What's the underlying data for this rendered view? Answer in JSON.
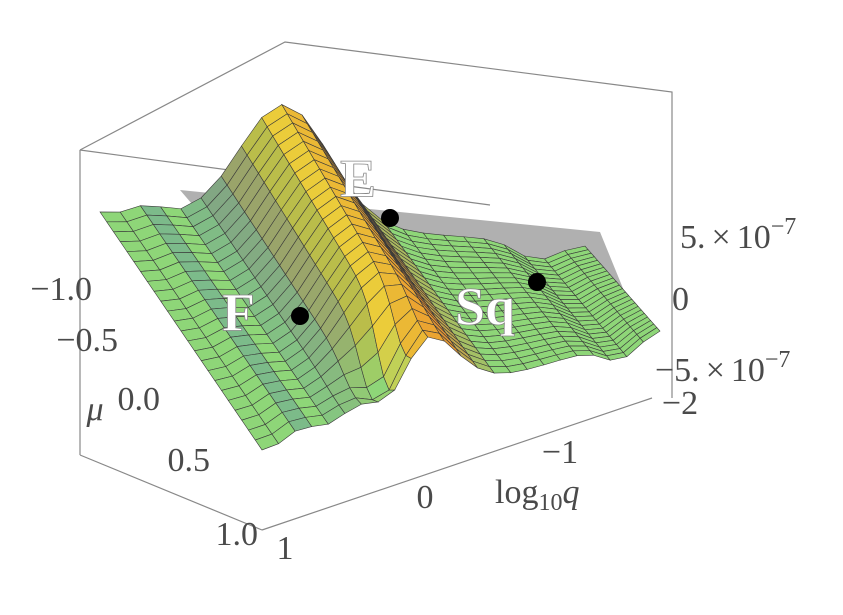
{
  "axes": {
    "mu": {
      "label": "μ",
      "ticks": [
        "−1.0",
        "−0.5",
        "0.0",
        "0.5",
        "1.0"
      ]
    },
    "log_q": {
      "label_base": "log",
      "label_sub": "10",
      "label_var": "q",
      "ticks": [
        "1",
        "0",
        "−1",
        "−2"
      ]
    },
    "z": {
      "ticks": [
        {
          "mantissa": "5.",
          "times": "×",
          "base": "10",
          "exponent": "−7"
        },
        {
          "mantissa": "0"
        },
        {
          "mantissa": "−5.",
          "times": "×",
          "base": "10",
          "exponent": "−7"
        }
      ]
    }
  },
  "points": [
    {
      "label": "E"
    },
    {
      "label": "F"
    },
    {
      "label": "Sq"
    }
  ]
}
